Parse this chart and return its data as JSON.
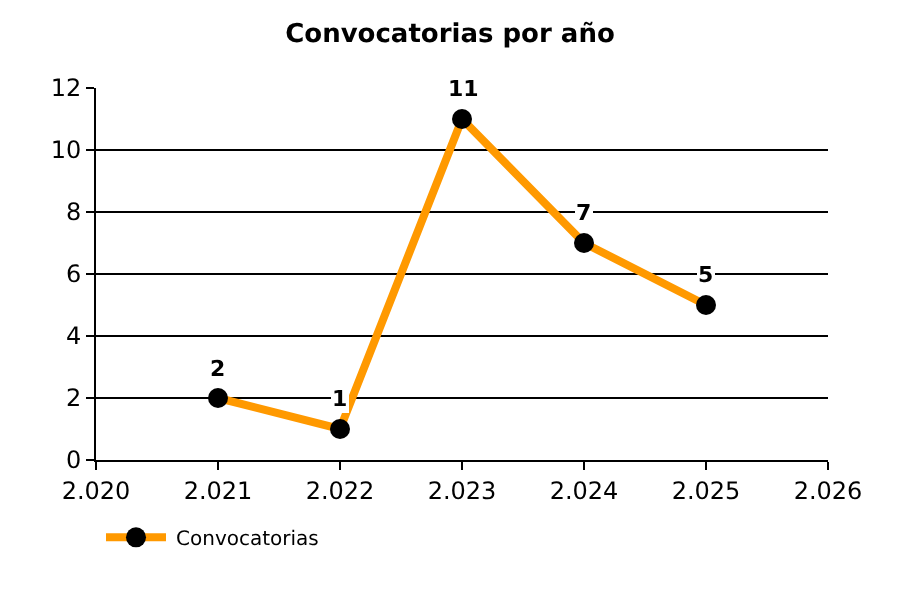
{
  "chart_data": {
    "type": "line",
    "title": "Convocatorias por año",
    "x": [
      2021,
      2022,
      2023,
      2024,
      2025
    ],
    "series": [
      {
        "name": "Convocatorias",
        "color": "#ff9900",
        "values": [
          2,
          1,
          11,
          7,
          5
        ]
      }
    ],
    "xlim": [
      2020,
      2026
    ],
    "xticks": [
      {
        "value": 2020,
        "label": "2.020"
      },
      {
        "value": 2021,
        "label": "2.021"
      },
      {
        "value": 2022,
        "label": "2.022"
      },
      {
        "value": 2023,
        "label": "2.023"
      },
      {
        "value": 2024,
        "label": "2.024"
      },
      {
        "value": 2025,
        "label": "2.025"
      },
      {
        "value": 2026,
        "label": "2.026"
      }
    ],
    "ylim": [
      0,
      12
    ],
    "yticks": [
      0,
      2,
      4,
      6,
      8,
      10,
      12
    ],
    "grid": "y",
    "legend": "bottom left",
    "marker": "circle",
    "line_style": "solid",
    "data_labels": true
  }
}
